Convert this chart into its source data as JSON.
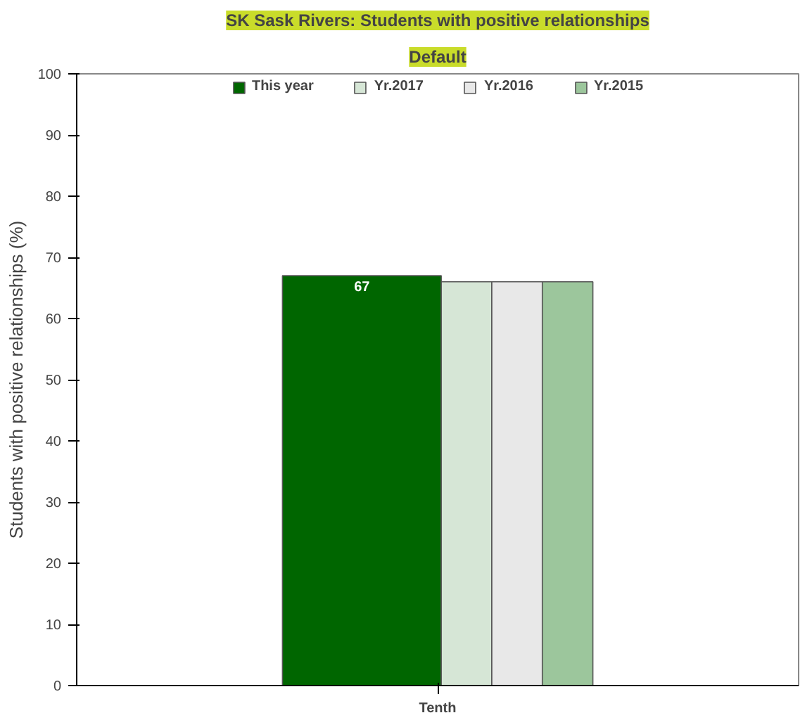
{
  "chart_data": {
    "type": "bar",
    "title": "SK Sask Rivers: Students with positive relationships",
    "subtitle": "Default",
    "ylabel": "Students with positive relationships (%)",
    "categories": [
      "Tenth"
    ],
    "series": [
      {
        "name": "This year",
        "color": "#006600",
        "values": [
          67
        ],
        "value_labels": [
          "67"
        ]
      },
      {
        "name": "Yr.2017",
        "color": "#d6e6d6",
        "values": [
          66
        ]
      },
      {
        "name": "Yr.2016",
        "color": "#e8e8e8",
        "values": [
          66
        ]
      },
      {
        "name": "Yr.2015",
        "color": "#9cc69c",
        "values": [
          66
        ]
      }
    ],
    "ylim": [
      0,
      100
    ],
    "yticks": [
      0,
      10,
      20,
      30,
      40,
      50,
      60,
      70,
      80,
      90,
      100
    ],
    "legend": "top",
    "grid": false
  }
}
